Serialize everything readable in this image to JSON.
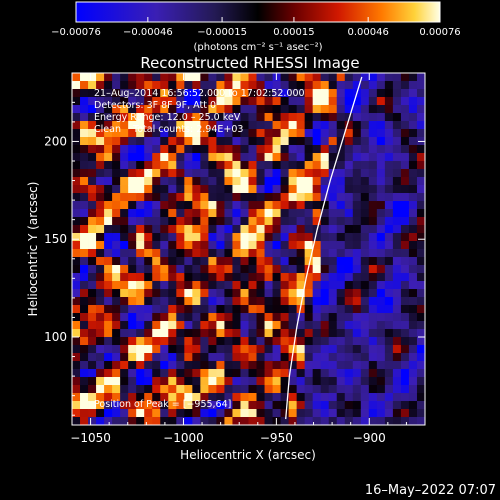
{
  "chart_data": {
    "type": "heatmap",
    "title": "Reconstructed RHESSI Image",
    "xlabel": "Heliocentric X (arcsec)",
    "ylabel": "Heliocentric Y (arcsec)",
    "xlim": [
      -1060,
      -870
    ],
    "ylim": [
      55,
      235
    ],
    "x_ticks": [
      -1050,
      -1000,
      -950,
      -900
    ],
    "y_ticks": [
      100,
      150,
      200
    ],
    "x_tick_labels": [
      "−1050",
      "−1000",
      "−950",
      "−900"
    ],
    "y_tick_labels": [
      "100",
      "150",
      "200"
    ],
    "colorbar": {
      "range": [
        -0.00076,
        0.00076
      ],
      "ticks": [
        -0.00076,
        -0.00046,
        -0.00015,
        0.00015,
        0.00046,
        0.00076
      ],
      "tick_labels": [
        "−0.00076",
        "−0.00046",
        "−0.00015",
        "0.00015",
        "0.00046",
        "0.00076"
      ],
      "units_label": "(photons cm⁻² s⁻¹ asec⁻²)"
    },
    "annotations": [
      "21–Aug–2014 16:56:52.000 to 17:02:52.000",
      "Detectors: 3F 8F 9F, Att 0",
      "Energy Range: 12.0 – 25.0 keV",
      "Clean    Total counts: 2.94E+03"
    ],
    "peak_label": "Position of Peak = [−955,64]",
    "limb_points": [
      [
        -945,
        58
      ],
      [
        -943,
        80
      ],
      [
        -939,
        105
      ],
      [
        -934,
        130
      ],
      [
        -928,
        155
      ],
      [
        -921,
        180
      ],
      [
        -913,
        205
      ],
      [
        -904,
        233
      ]
    ]
  },
  "footer": {
    "timestamp": "16–May–2022 07:07"
  },
  "colors": {
    "background": "#000000",
    "text": "#ffffff"
  }
}
